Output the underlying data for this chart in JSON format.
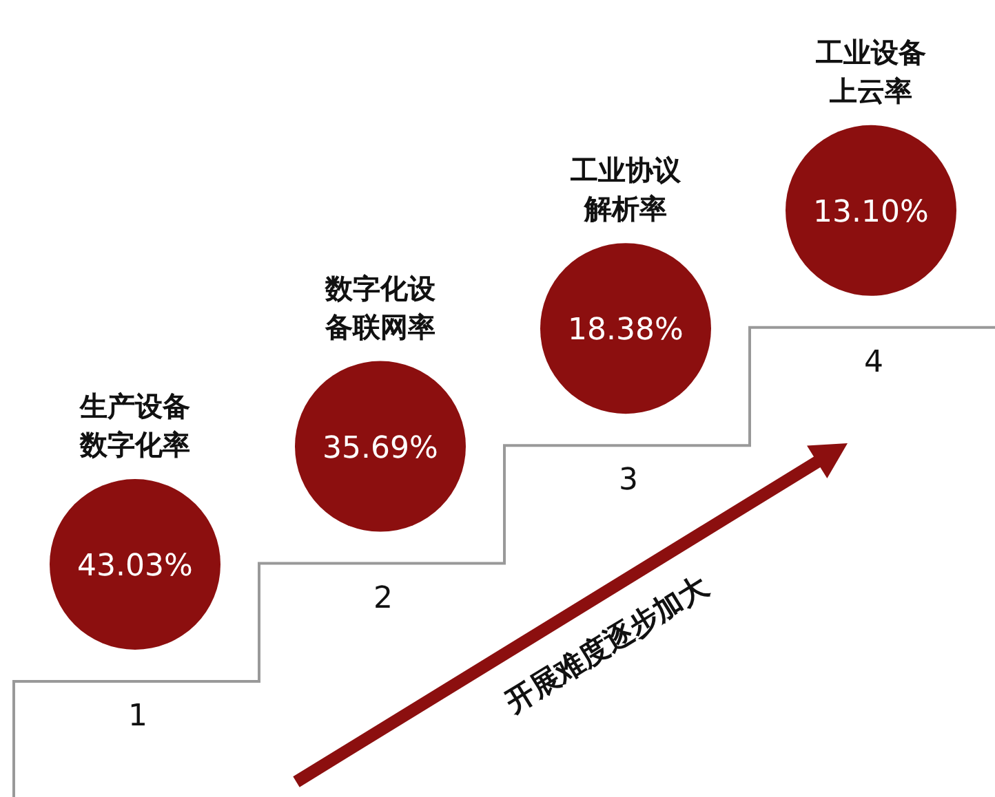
{
  "chart_data": {
    "type": "other",
    "categories": [
      "生产设备数字化率",
      "数字化设备联网率",
      "工业协议解析率",
      "工业设备上云率"
    ],
    "values": [
      43.03,
      35.69,
      18.38,
      13.1
    ],
    "value_labels": [
      "43.03%",
      "35.69%",
      "18.38%",
      "13.10%"
    ],
    "color": "#8c0f0f",
    "annotations": [
      "1",
      "2",
      "3",
      "4",
      "开展难度逐步加大"
    ]
  }
}
